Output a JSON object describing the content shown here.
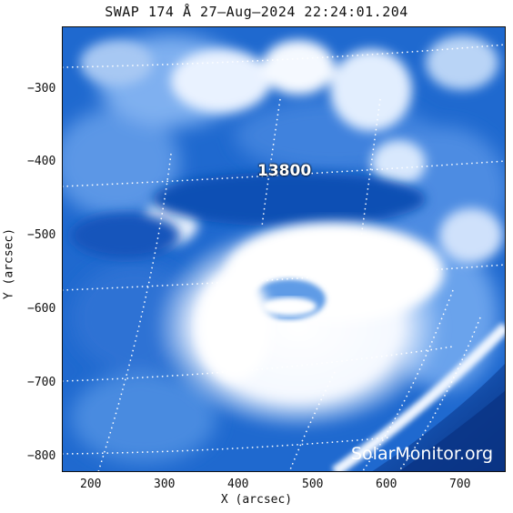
{
  "title": "SWAP 174 Å 27–Aug–2024 22:24:01.204",
  "x_axis": {
    "label": "X (arcsec)",
    "ticks": [
      "200",
      "300",
      "400",
      "500",
      "600",
      "700"
    ]
  },
  "y_axis": {
    "label": "Y (arcsec)",
    "ticks": [
      "−300",
      "−400",
      "−500",
      "−600",
      "−700",
      "−800"
    ]
  },
  "region_label": "13800",
  "watermark": "SolarMonitor.org",
  "colors": {
    "deep_blue": "#0a3f9e",
    "mid_blue": "#1a66cc",
    "bright": "#ffffff",
    "limb": "#e8f2ff"
  }
}
